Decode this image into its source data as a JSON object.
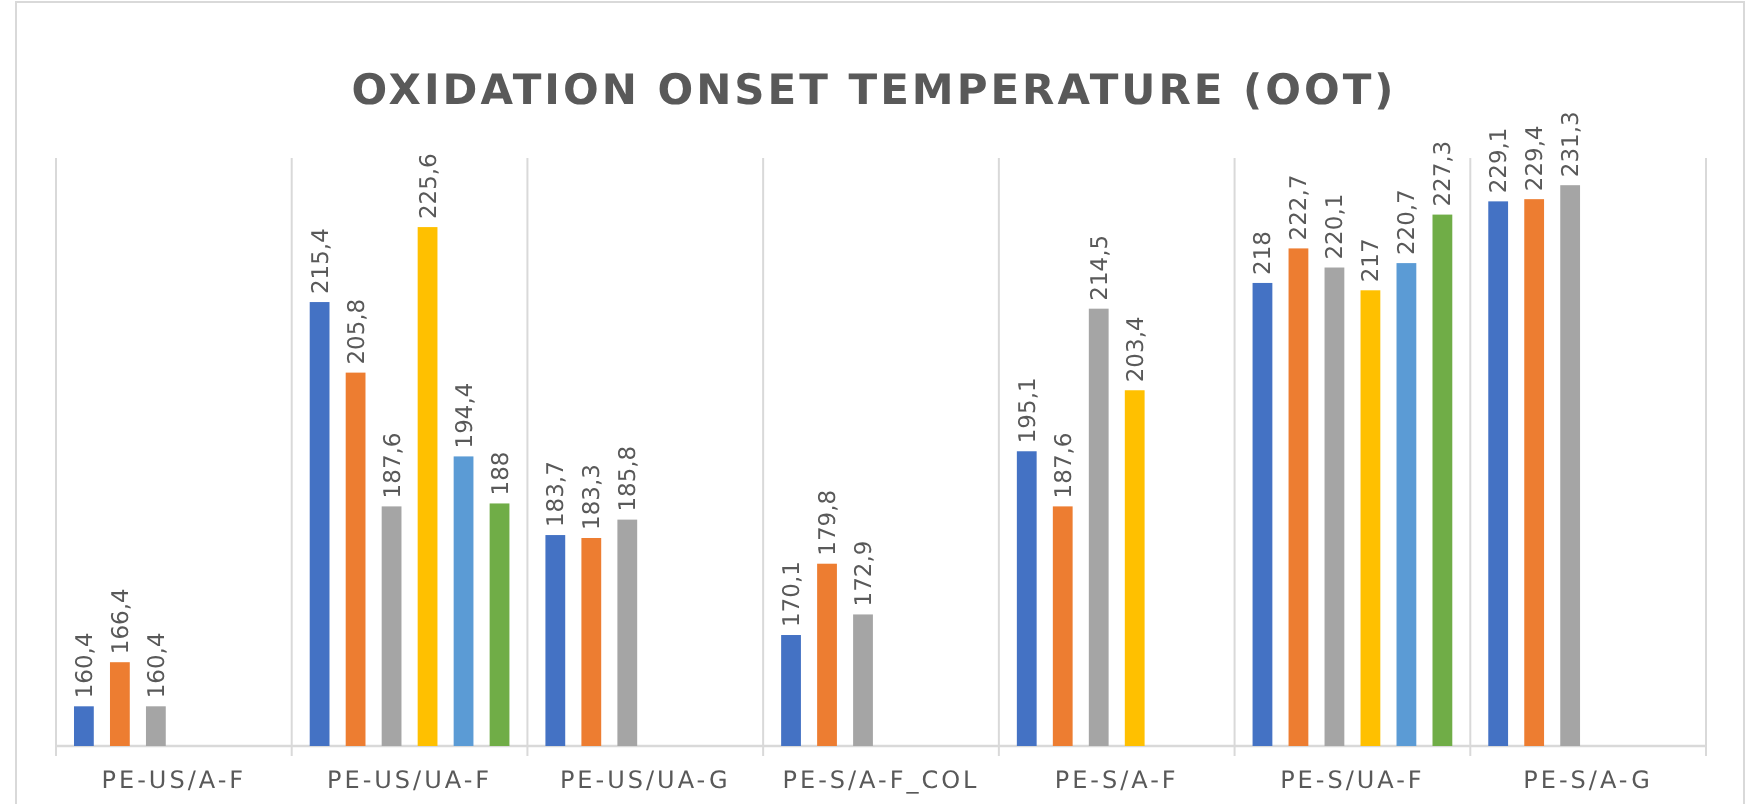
{
  "chart_data": {
    "type": "bar",
    "title": "OXIDATION ONSET TEMPERATURE (OOT)",
    "categories": [
      "PE-US/A-F",
      "PE-US/UA-F",
      "PE-US/UA-G",
      "PE-S/A-F_COL",
      "PE-S/A-F",
      "PE-S/UA-F",
      "PE-S/A-G"
    ],
    "series": [
      {
        "color": "#4472c4",
        "values": [
          160.4,
          215.4,
          183.7,
          170.1,
          195.1,
          218,
          229.1
        ],
        "value_labels": [
          "160,4",
          "215,4",
          "183,7",
          "170,1",
          "195,1",
          "218",
          "229,1"
        ]
      },
      {
        "color": "#ed7d31",
        "values": [
          166.4,
          205.8,
          183.3,
          179.8,
          187.6,
          222.7,
          229.4
        ],
        "value_labels": [
          "166,4",
          "205,8",
          "183,3",
          "179,8",
          "187,6",
          "222,7",
          "229,4"
        ]
      },
      {
        "color": "#a5a5a5",
        "values": [
          160.4,
          187.6,
          185.8,
          172.9,
          214.5,
          220.1,
          231.3
        ],
        "value_labels": [
          "160,4",
          "187,6",
          "185,8",
          "172,9",
          "214,5",
          "220,1",
          "231,3"
        ]
      },
      {
        "color": "#ffc000",
        "values": [
          null,
          225.6,
          null,
          null,
          203.4,
          217,
          null
        ],
        "value_labels": [
          null,
          "225,6",
          null,
          null,
          "203,4",
          "217",
          null
        ]
      },
      {
        "color": "#5b9bd5",
        "values": [
          null,
          194.4,
          null,
          null,
          null,
          220.7,
          null
        ],
        "value_labels": [
          null,
          "194,4",
          null,
          null,
          null,
          "220,7",
          null
        ]
      },
      {
        "color": "#70ad47",
        "values": [
          null,
          188,
          null,
          null,
          null,
          227.3,
          null
        ],
        "value_labels": [
          null,
          "188",
          null,
          null,
          null,
          "227,3",
          null
        ]
      }
    ],
    "ylim": [
      155,
      235
    ],
    "tick_labels": "x"
  }
}
